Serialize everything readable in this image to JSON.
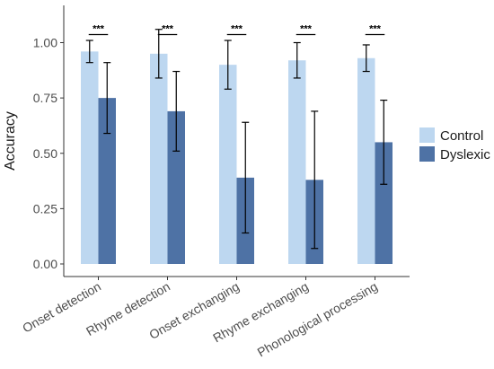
{
  "chart_data": {
    "type": "bar",
    "categories": [
      "Onset detection",
      "Rhyme detection",
      "Onset exchanging",
      "Rhyme exchanging",
      "Phonological processing"
    ],
    "series": [
      {
        "name": "Control",
        "color": "#bdd7f0",
        "values": [
          0.96,
          0.95,
          0.9,
          0.92,
          0.93
        ],
        "error": [
          0.05,
          0.11,
          0.11,
          0.08,
          0.06
        ]
      },
      {
        "name": "Dyslexic",
        "color": "#4e72a5",
        "values": [
          0.75,
          0.69,
          0.39,
          0.38,
          0.55
        ],
        "error": [
          0.16,
          0.18,
          0.25,
          0.31,
          0.19
        ]
      }
    ],
    "ylabel": "Accuracy",
    "xlabel": "",
    "ylim": [
      0,
      1.15
    ],
    "yticks": [
      "0.00",
      "0.25",
      "0.50",
      "0.75",
      "1.00"
    ],
    "significance": [
      "***",
      "***",
      "***",
      "***",
      "***"
    ],
    "legend_position": "right",
    "grid": false
  }
}
